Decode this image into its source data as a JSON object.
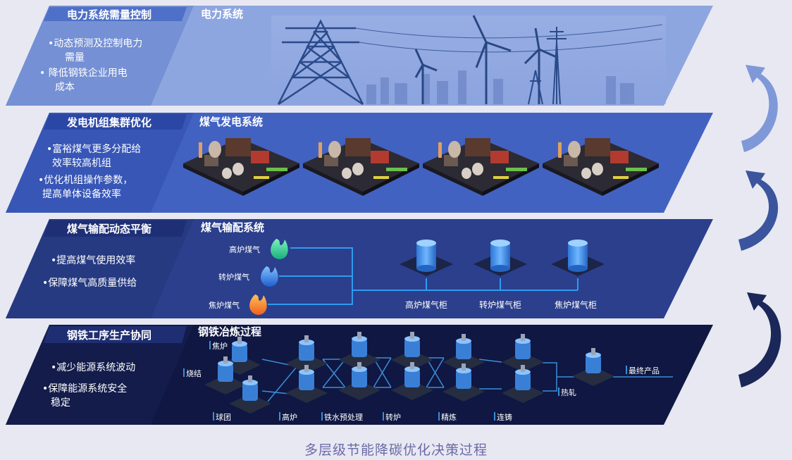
{
  "layers": [
    {
      "title": "电力系统需量控制",
      "bullets": [
        "•动态预测及控制电力",
        "需量",
        "• 降低钢铁企业用电",
        "成本"
      ],
      "system_title": "电力系统",
      "colors": {
        "panel": "#7d99d8",
        "title_bg": "#4a6ec4",
        "left_panel": "#6e8bd0"
      }
    },
    {
      "title": "发电机组集群优化",
      "bullets": [
        "•富裕煤气更多分配给",
        "效率较高机组",
        "•优化机组操作参数，",
        "提高单体设备效率"
      ],
      "system_title": "煤气发电系统",
      "colors": {
        "panel": "#3f5fbf",
        "title_bg": "#2c48a8",
        "left_panel": "#3655b4"
      }
    },
    {
      "title": "煤气输配动态平衡",
      "bullets": [
        "•提高煤气使用效率",
        "•保障煤气高质量供给"
      ],
      "system_title": "煤气输配系统",
      "gases": [
        "高炉煤气",
        "转炉煤气",
        "焦炉煤气"
      ],
      "holders": [
        "高炉煤气柜",
        "转炉煤气柜",
        "焦炉煤气柜"
      ],
      "colors": {
        "panel": "#2a3e8a",
        "title_bg": "#1f3078",
        "left_panel": "#26387f"
      }
    },
    {
      "title": "钢铁工序生产协同",
      "bullets": [
        "•减少能源系统波动",
        "•保障能源系统安全",
        "稳定"
      ],
      "system_title": "钢铁冶炼过程",
      "steps": [
        "焦炉",
        "烧结",
        "球团",
        "高炉",
        "铁水预处理",
        "转炉",
        "精炼",
        "连铸",
        "热轧",
        "最终产品"
      ],
      "colors": {
        "panel": "#111a45",
        "title_bg": "#1c2a6e",
        "left_panel": "#131d4c"
      }
    }
  ],
  "caption": "多层级节能降碳优化决策过程",
  "arrow_colors": [
    "#7f98d8",
    "#3a559e",
    "#1a2758"
  ]
}
